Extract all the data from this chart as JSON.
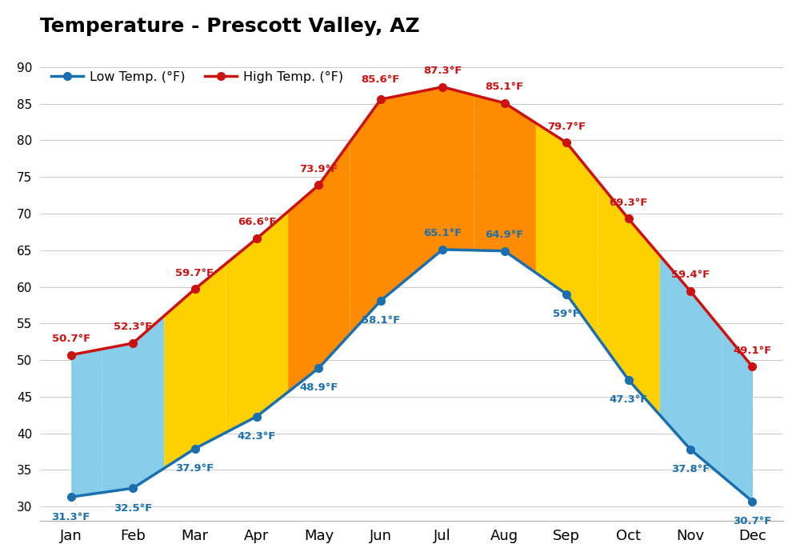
{
  "title": "Temperature - Prescott Valley, AZ",
  "months": [
    "Jan",
    "Feb",
    "Mar",
    "Apr",
    "May",
    "Jun",
    "Jul",
    "Aug",
    "Sep",
    "Oct",
    "Nov",
    "Dec"
  ],
  "low_temps": [
    31.3,
    32.5,
    37.9,
    42.3,
    48.9,
    58.1,
    65.1,
    64.9,
    59.0,
    47.3,
    37.8,
    30.7
  ],
  "high_temps": [
    50.7,
    52.3,
    59.7,
    66.6,
    73.9,
    85.6,
    87.3,
    85.1,
    79.7,
    69.3,
    59.4,
    49.1
  ],
  "low_labels": [
    "31.3°F",
    "32.5°F",
    "37.9°F",
    "42.3°F",
    "48.9°F",
    "58.1°F",
    "65.1°F",
    "64.9°F",
    "59°F",
    "47.3°F",
    "37.8°F",
    "30.7°F"
  ],
  "high_labels": [
    "50.7°F",
    "52.3°F",
    "59.7°F",
    "66.6°F",
    "73.9°F",
    "85.6°F",
    "87.3°F",
    "85.1°F",
    "79.7°F",
    "69.3°F",
    "59.4°F",
    "49.1°F"
  ],
  "low_color": "#1a6faf",
  "high_color": "#cc1111",
  "fill_cold_color": "#87CEEB",
  "fill_cold_light_color": "#ADD8E6",
  "fill_warm_color": "#FFD000",
  "fill_hot_color": "#FF8C00",
  "ylim": [
    28,
    93
  ],
  "yticks": [
    30,
    35,
    40,
    45,
    50,
    55,
    60,
    65,
    70,
    75,
    80,
    85,
    90
  ],
  "background_color": "#ffffff",
  "legend_low": "Low Temp. (°F)",
  "legend_high": "High Temp. (°F)",
  "segment_colors": [
    "#87CEEB",
    "#87CEEB",
    "#FFD000",
    "#FFD000",
    "#FF8C00",
    "#FF8C00",
    "#FF8C00",
    "#FF8C00",
    "#FFD000",
    "#FFD000",
    "#87CEEB",
    "#87CEEB"
  ],
  "low_label_offsets_x": [
    0,
    0,
    0,
    0,
    0,
    0,
    0,
    0,
    0,
    0,
    0,
    0
  ],
  "low_label_offsets_y": [
    -2.0,
    -2.0,
    -2.0,
    -2.0,
    -2.0,
    -2.0,
    1.5,
    1.5,
    -2.0,
    -2.0,
    -2.0,
    -2.0
  ],
  "low_label_va": [
    "top",
    "top",
    "top",
    "top",
    "top",
    "top",
    "bottom",
    "bottom",
    "top",
    "top",
    "top",
    "top"
  ],
  "high_label_offsets_x": [
    0,
    0,
    0,
    0,
    0,
    0,
    0,
    0,
    0,
    0,
    0,
    0
  ],
  "high_label_offsets_y": [
    1.5,
    1.5,
    1.5,
    1.5,
    1.5,
    2.0,
    1.5,
    1.5,
    1.5,
    1.5,
    1.5,
    1.5
  ],
  "high_label_va": [
    "bottom",
    "bottom",
    "bottom",
    "bottom",
    "bottom",
    "bottom",
    "bottom",
    "bottom",
    "bottom",
    "bottom",
    "bottom",
    "bottom"
  ]
}
